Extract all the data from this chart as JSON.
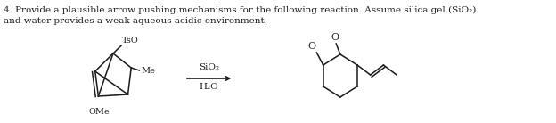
{
  "title_line1": "4. Provide a plausible arrow pushing mechanisms for the following reaction. Assume silica gel (SiO₂)",
  "title_line2": "and water provides a weak aqueous acidic environment.",
  "reagent1": "SiO₂",
  "reagent2": "H₂O",
  "label_TsO": "TsO",
  "label_Me": "Me",
  "label_OMe": "OMe",
  "bg_color": "#ffffff",
  "line_color": "#1a1a1a",
  "text_color": "#1a1a1a",
  "figsize": [
    6.24,
    1.38
  ],
  "dpi": 100
}
